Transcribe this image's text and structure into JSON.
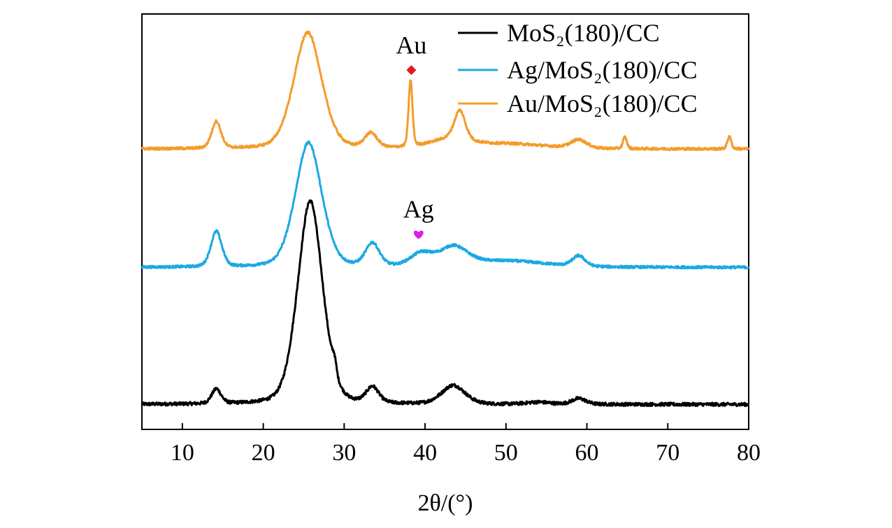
{
  "chart_data": {
    "type": "line",
    "title": "",
    "xlabel": "2θ/(°)",
    "ylabel": "",
    "xlim": [
      5,
      80
    ],
    "ylim": [
      0,
      1
    ],
    "y_ticks_shown": false,
    "xticks": [
      10,
      20,
      30,
      40,
      50,
      60,
      70,
      80
    ],
    "grid": false,
    "legend_position": "top-right",
    "series": [
      {
        "name": "MoS₂(180)/CC",
        "color": "#000000",
        "baseline": 0.06,
        "noise": 0.004,
        "peaks": [
          {
            "x": 14.2,
            "h": 0.035,
            "w": 0.6
          },
          {
            "x": 25.8,
            "h": 0.49,
            "w": 1.6
          },
          {
            "x": 28.8,
            "h": 0.03,
            "w": 0.25
          },
          {
            "x": 33.5,
            "h": 0.038,
            "w": 0.8
          },
          {
            "x": 43.5,
            "h": 0.045,
            "w": 1.5
          },
          {
            "x": 54.0,
            "h": 0.005,
            "w": 1.5
          },
          {
            "x": 59.0,
            "h": 0.014,
            "w": 0.9
          }
        ]
      },
      {
        "name": "Ag/MoS₂(180)/CC",
        "color": "#1AA9E3",
        "baseline": 0.39,
        "noise": 0.003,
        "peaks": [
          {
            "x": 14.2,
            "h": 0.085,
            "w": 0.7
          },
          {
            "x": 25.6,
            "h": 0.3,
            "w": 1.7
          },
          {
            "x": 33.5,
            "h": 0.055,
            "w": 0.9
          },
          {
            "x": 39.5,
            "h": 0.03,
            "w": 1.4
          },
          {
            "x": 43.5,
            "h": 0.045,
            "w": 1.8
          },
          {
            "x": 50.0,
            "h": 0.015,
            "w": 5.0
          },
          {
            "x": 59.0,
            "h": 0.025,
            "w": 0.8
          }
        ]
      },
      {
        "name": "Au/MoS₂(180)/CC",
        "color": "#F39C2B",
        "baseline": 0.675,
        "noise": 0.003,
        "peaks": [
          {
            "x": 14.2,
            "h": 0.065,
            "w": 0.6
          },
          {
            "x": 25.5,
            "h": 0.28,
            "w": 1.8
          },
          {
            "x": 33.3,
            "h": 0.035,
            "w": 0.8
          },
          {
            "x": 38.2,
            "h": 0.16,
            "w": 0.25
          },
          {
            "x": 44.3,
            "h": 0.07,
            "w": 0.7
          },
          {
            "x": 43.0,
            "h": 0.02,
            "w": 2.5
          },
          {
            "x": 50.0,
            "h": 0.012,
            "w": 5.0
          },
          {
            "x": 59.0,
            "h": 0.02,
            "w": 1.0
          },
          {
            "x": 64.7,
            "h": 0.028,
            "w": 0.25
          },
          {
            "x": 77.6,
            "h": 0.03,
            "w": 0.25
          }
        ]
      }
    ],
    "annotations": [
      {
        "text": "Au",
        "x": 38.3,
        "y": 0.905,
        "marker": "diamond",
        "marker_color": "#E31A1C",
        "marker_y": 0.865
      },
      {
        "text": "Ag",
        "x": 39.2,
        "y": 0.51,
        "marker": "heart",
        "marker_color": "#E020E0",
        "marker_y": 0.47
      }
    ]
  }
}
